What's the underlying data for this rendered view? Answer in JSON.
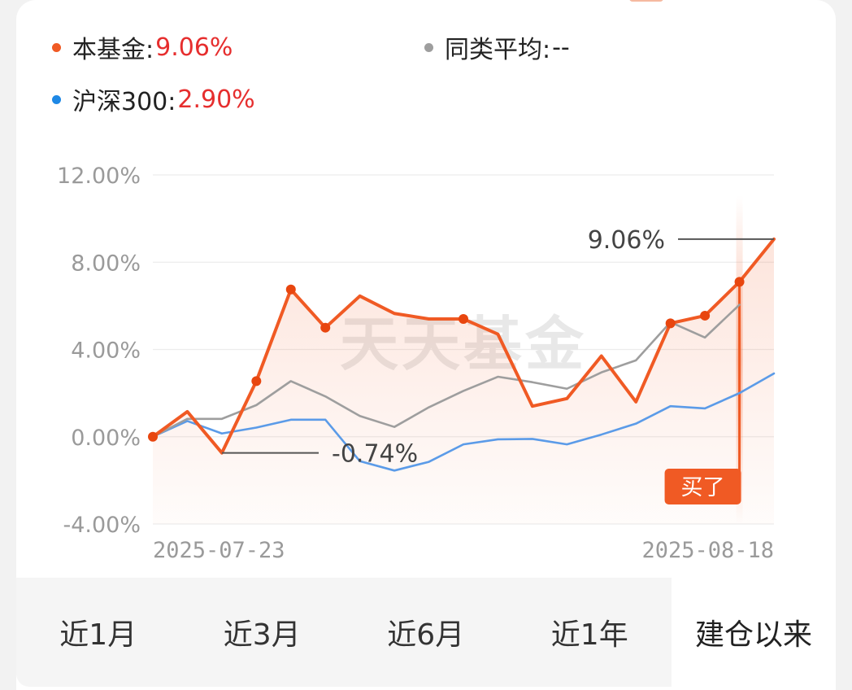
{
  "legend": [
    {
      "label": "本基金:",
      "value": "9.06%",
      "dot_color": "#f05a24",
      "value_color": "#e62e2e"
    },
    {
      "label": "同类平均:",
      "value": "--",
      "dot_color": "#9e9e9e",
      "value_color": "#222222"
    },
    {
      "label": "沪深300:",
      "value": "2.90%",
      "dot_color": "#1e88e5",
      "value_color": "#e62e2e"
    }
  ],
  "chart_data": {
    "type": "line",
    "x_start_label": "2025-07-23",
    "x_end_label": "2025-08-18",
    "y_ticks": [
      "12.00%",
      "8.00%",
      "4.00%",
      "0.00%",
      "-4.00%"
    ],
    "ylim": [
      -4,
      12
    ],
    "watermark": "天天基金",
    "series": [
      {
        "name": "本基金",
        "color": "#f05a24",
        "values": [
          0.0,
          1.15,
          -0.74,
          2.55,
          6.75,
          5.0,
          6.45,
          5.65,
          5.4,
          5.4,
          4.7,
          1.4,
          1.75,
          3.7,
          1.6,
          5.2,
          5.55,
          7.1,
          9.06
        ],
        "marked_points": [
          0,
          3,
          4,
          5,
          9,
          15,
          16,
          17
        ]
      },
      {
        "name": "同类平均",
        "color": "#9e9e9e",
        "values": [
          0.0,
          0.82,
          0.82,
          1.45,
          2.55,
          1.85,
          0.95,
          0.45,
          1.35,
          2.1,
          2.75,
          2.5,
          2.2,
          2.95,
          3.5,
          5.25,
          4.55,
          6.05,
          null
        ]
      },
      {
        "name": "沪深300",
        "color": "#5b9be8",
        "values": [
          0.0,
          0.72,
          0.15,
          0.42,
          0.78,
          0.78,
          -1.12,
          -1.55,
          -1.15,
          -0.35,
          -0.12,
          -0.1,
          -0.35,
          0.1,
          0.6,
          1.4,
          1.3,
          2.0,
          2.9
        ]
      }
    ],
    "callouts": [
      {
        "text": "9.06%",
        "index": 18,
        "value": 9.06
      },
      {
        "text": "-0.74%",
        "index": 2,
        "value": -0.74
      }
    ],
    "buy_marker": {
      "label": "买了",
      "index": 17
    }
  },
  "tabs": [
    "近1月",
    "近3月",
    "近6月",
    "近1年",
    "建仓以来"
  ]
}
